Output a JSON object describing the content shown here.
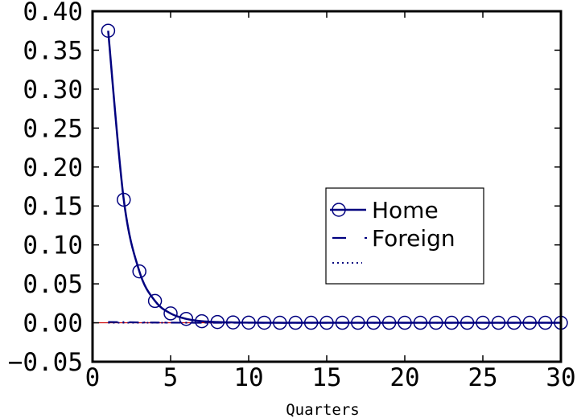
{
  "chart_data": {
    "type": "line",
    "title": "",
    "xlabel": "Quarters",
    "ylabel": "",
    "xlim": [
      0,
      30
    ],
    "ylim": [
      -0.05,
      0.4
    ],
    "xticks": [
      0,
      5,
      10,
      15,
      20,
      25,
      30
    ],
    "xtick_labels": [
      "0",
      "5",
      "10",
      "15",
      "20",
      "25",
      "30"
    ],
    "yticks": [
      -0.05,
      0.0,
      0.05,
      0.1,
      0.15,
      0.2,
      0.25,
      0.3,
      0.35,
      0.4
    ],
    "ytick_labels": [
      "−0.05",
      "0.00",
      "0.05",
      "0.10",
      "0.15",
      "0.20",
      "0.25",
      "0.30",
      "0.35",
      "0.40"
    ],
    "grid": false,
    "legend_position": "right-middle",
    "x": [
      1,
      2,
      3,
      4,
      5,
      6,
      7,
      8,
      9,
      10,
      11,
      12,
      13,
      14,
      15,
      16,
      17,
      18,
      19,
      20,
      21,
      22,
      23,
      24,
      25,
      26,
      27,
      28,
      29,
      30
    ],
    "series": [
      {
        "name": "Home",
        "style": "solid line with circle markers",
        "color": "#00007f",
        "values": [
          0.375,
          0.158,
          0.066,
          0.028,
          0.012,
          0.005,
          0.002,
          0.001,
          0.0005,
          0.0002,
          0.0001,
          0,
          0,
          0,
          0,
          0,
          0,
          0,
          0,
          0,
          0,
          0,
          0,
          0,
          0,
          0,
          0,
          0,
          0,
          0
        ]
      },
      {
        "name": "Foreign",
        "style": "dash-dot line",
        "color": "#00007f",
        "values": [
          0.001,
          0.0008,
          0.0005,
          0.0003,
          0.0002,
          0.0001,
          0,
          0,
          0,
          0,
          0,
          0,
          0,
          0,
          0,
          0,
          0,
          0,
          0,
          0,
          0,
          0,
          0,
          0,
          0,
          0,
          0,
          0,
          0,
          0
        ]
      },
      {
        "name": "",
        "style": "dotted line",
        "color": "#00007f",
        "values": [
          0,
          0,
          0,
          0,
          0,
          0,
          0,
          0,
          0,
          0,
          0,
          0,
          0,
          0,
          0,
          0,
          0,
          0,
          0,
          0,
          0,
          0,
          0,
          0,
          0,
          0,
          0,
          0,
          0,
          0
        ]
      }
    ],
    "zero_line_color": "#cc0000"
  }
}
